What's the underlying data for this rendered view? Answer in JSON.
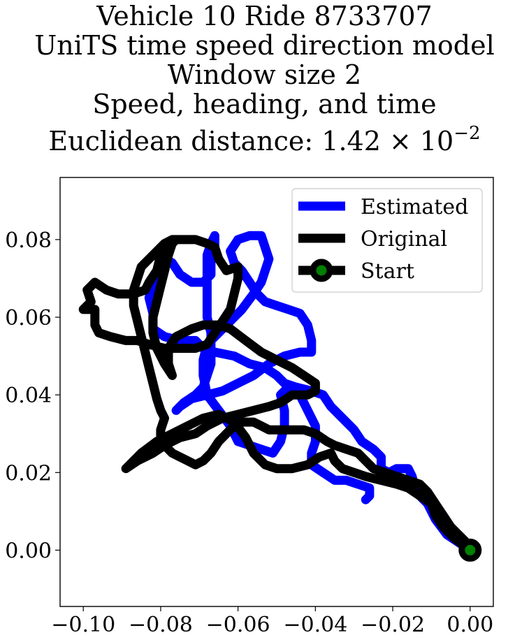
{
  "chart_data": {
    "type": "line",
    "title_lines": [
      "Vehicle 10 Ride 8733707",
      "UniTS time speed direction model",
      "Window size 2",
      "Speed, heading, and time",
      "Euclidean distance: 1.42 × 10",
      "−2"
    ],
    "xlim": [
      -0.106,
      0.006
    ],
    "ylim": [
      -0.0145,
      0.096
    ],
    "xticks": [
      -0.1,
      -0.08,
      -0.06,
      -0.04,
      -0.02,
      0.0
    ],
    "xtick_labels": [
      "−0.10",
      "−0.08",
      "−0.06",
      "−0.04",
      "−0.02",
      "0.00"
    ],
    "yticks": [
      0.0,
      0.02,
      0.04,
      0.06,
      0.08
    ],
    "ytick_labels": [
      "0.00",
      "0.02",
      "0.04",
      "0.06",
      "0.08"
    ],
    "grid": false,
    "legend_position": "top-right",
    "legend": [
      "Estimated",
      "Original",
      "Start"
    ],
    "series": [
      {
        "name": "Estimated",
        "color": "#0000ff",
        "points": [
          [
            0.0,
            0.0
          ],
          [
            -0.006,
            0.004
          ],
          [
            -0.009,
            0.008
          ],
          [
            -0.011,
            0.012
          ],
          [
            -0.014,
            0.015
          ],
          [
            -0.015,
            0.019
          ],
          [
            -0.016,
            0.021
          ],
          [
            -0.019,
            0.021
          ],
          [
            -0.021,
            0.02
          ],
          [
            -0.023,
            0.021
          ],
          [
            -0.023,
            0.024
          ],
          [
            -0.025,
            0.026
          ],
          [
            -0.028,
            0.028
          ],
          [
            -0.03,
            0.031
          ],
          [
            -0.033,
            0.034
          ],
          [
            -0.036,
            0.037
          ],
          [
            -0.038,
            0.04
          ],
          [
            -0.041,
            0.041
          ],
          [
            -0.045,
            0.042
          ],
          [
            -0.048,
            0.043
          ],
          [
            -0.05,
            0.045
          ],
          [
            -0.053,
            0.047
          ],
          [
            -0.057,
            0.048
          ],
          [
            -0.061,
            0.05
          ],
          [
            -0.066,
            0.051
          ],
          [
            -0.069,
            0.052
          ],
          [
            -0.071,
            0.054
          ],
          [
            -0.075,
            0.054
          ],
          [
            -0.079,
            0.055
          ],
          [
            -0.082,
            0.057
          ],
          [
            -0.082,
            0.061
          ],
          [
            -0.083,
            0.065
          ],
          [
            -0.082,
            0.069
          ],
          [
            -0.08,
            0.072
          ],
          [
            -0.079,
            0.075
          ],
          [
            -0.077,
            0.074
          ],
          [
            -0.075,
            0.071
          ],
          [
            -0.072,
            0.069
          ],
          [
            -0.069,
            0.069
          ],
          [
            -0.067,
            0.071
          ],
          [
            -0.067,
            0.075
          ],
          [
            -0.066,
            0.078
          ],
          [
            -0.066,
            0.081
          ],
          [
            -0.067,
            0.079
          ],
          [
            -0.068,
            0.076
          ],
          [
            -0.068,
            0.072
          ],
          [
            -0.068,
            0.068
          ],
          [
            -0.068,
            0.064
          ],
          [
            -0.068,
            0.06
          ],
          [
            -0.067,
            0.056
          ],
          [
            -0.067,
            0.052
          ],
          [
            -0.067,
            0.048
          ],
          [
            -0.068,
            0.045
          ],
          [
            -0.069,
            0.042
          ],
          [
            -0.071,
            0.04
          ],
          [
            -0.074,
            0.038
          ],
          [
            -0.076,
            0.036
          ],
          [
            -0.075,
            0.037
          ],
          [
            -0.072,
            0.039
          ],
          [
            -0.068,
            0.04
          ],
          [
            -0.064,
            0.041
          ],
          [
            -0.06,
            0.043
          ],
          [
            -0.056,
            0.045
          ],
          [
            -0.052,
            0.048
          ],
          [
            -0.048,
            0.05
          ],
          [
            -0.044,
            0.051
          ],
          [
            -0.041,
            0.051
          ],
          [
            -0.041,
            0.054
          ],
          [
            -0.042,
            0.058
          ],
          [
            -0.044,
            0.061
          ],
          [
            -0.047,
            0.062
          ],
          [
            -0.05,
            0.063
          ],
          [
            -0.053,
            0.064
          ],
          [
            -0.055,
            0.066
          ],
          [
            -0.057,
            0.069
          ],
          [
            -0.059,
            0.072
          ],
          [
            -0.061,
            0.074
          ],
          [
            -0.062,
            0.077
          ],
          [
            -0.06,
            0.08
          ],
          [
            -0.057,
            0.081
          ],
          [
            -0.054,
            0.081
          ],
          [
            -0.053,
            0.078
          ],
          [
            -0.052,
            0.075
          ],
          [
            -0.053,
            0.072
          ],
          [
            -0.054,
            0.069
          ],
          [
            -0.056,
            0.066
          ],
          [
            -0.059,
            0.062
          ],
          [
            -0.062,
            0.059
          ],
          [
            -0.065,
            0.056
          ],
          [
            -0.068,
            0.053
          ],
          [
            -0.069,
            0.049
          ],
          [
            -0.069,
            0.045
          ],
          [
            -0.068,
            0.04
          ],
          [
            -0.065,
            0.036
          ],
          [
            -0.062,
            0.032
          ],
          [
            -0.06,
            0.028
          ],
          [
            -0.057,
            0.027
          ],
          [
            -0.054,
            0.026
          ],
          [
            -0.051,
            0.025
          ],
          [
            -0.049,
            0.028
          ],
          [
            -0.048,
            0.032
          ],
          [
            -0.048,
            0.036
          ],
          [
            -0.049,
            0.04
          ],
          [
            -0.047,
            0.042
          ],
          [
            -0.044,
            0.04
          ],
          [
            -0.042,
            0.036
          ],
          [
            -0.04,
            0.032
          ],
          [
            -0.04,
            0.028
          ],
          [
            -0.041,
            0.025
          ],
          [
            -0.041,
            0.022
          ],
          [
            -0.038,
            0.02
          ],
          [
            -0.035,
            0.018
          ],
          [
            -0.032,
            0.018
          ],
          [
            -0.029,
            0.017
          ],
          [
            -0.026,
            0.016
          ],
          [
            -0.026,
            0.014
          ],
          [
            -0.027,
            0.013
          ]
        ]
      },
      {
        "name": "Original",
        "color": "#000000",
        "points": [
          [
            0.0,
            0.0
          ],
          [
            -0.004,
            0.003
          ],
          [
            -0.007,
            0.006
          ],
          [
            -0.009,
            0.009
          ],
          [
            -0.01,
            0.012
          ],
          [
            -0.013,
            0.014
          ],
          [
            -0.016,
            0.016
          ],
          [
            -0.019,
            0.017
          ],
          [
            -0.023,
            0.018
          ],
          [
            -0.027,
            0.019
          ],
          [
            -0.03,
            0.02
          ],
          [
            -0.033,
            0.021
          ],
          [
            -0.035,
            0.023
          ],
          [
            -0.036,
            0.025
          ],
          [
            -0.039,
            0.024
          ],
          [
            -0.042,
            0.022
          ],
          [
            -0.046,
            0.021
          ],
          [
            -0.05,
            0.021
          ],
          [
            -0.053,
            0.022
          ],
          [
            -0.056,
            0.025
          ],
          [
            -0.058,
            0.029
          ],
          [
            -0.061,
            0.033
          ],
          [
            -0.065,
            0.035
          ],
          [
            -0.069,
            0.034
          ],
          [
            -0.073,
            0.032
          ],
          [
            -0.077,
            0.03
          ],
          [
            -0.081,
            0.028
          ],
          [
            -0.085,
            0.025
          ],
          [
            -0.088,
            0.022
          ],
          [
            -0.089,
            0.021
          ],
          [
            -0.086,
            0.023
          ],
          [
            -0.082,
            0.025
          ],
          [
            -0.079,
            0.027
          ],
          [
            -0.075,
            0.029
          ],
          [
            -0.071,
            0.03
          ],
          [
            -0.068,
            0.032
          ],
          [
            -0.064,
            0.034
          ],
          [
            -0.06,
            0.035
          ],
          [
            -0.056,
            0.036
          ],
          [
            -0.052,
            0.037
          ],
          [
            -0.049,
            0.038
          ],
          [
            -0.046,
            0.04
          ],
          [
            -0.042,
            0.04
          ],
          [
            -0.04,
            0.041
          ],
          [
            -0.04,
            0.043
          ],
          [
            -0.043,
            0.045
          ],
          [
            -0.046,
            0.047
          ],
          [
            -0.05,
            0.049
          ],
          [
            -0.054,
            0.051
          ],
          [
            -0.058,
            0.054
          ],
          [
            -0.062,
            0.057
          ],
          [
            -0.065,
            0.058
          ],
          [
            -0.069,
            0.058
          ],
          [
            -0.072,
            0.057
          ],
          [
            -0.076,
            0.055
          ],
          [
            -0.078,
            0.052
          ],
          [
            -0.078,
            0.048
          ],
          [
            -0.077,
            0.045
          ],
          [
            -0.079,
            0.048
          ],
          [
            -0.081,
            0.052
          ],
          [
            -0.082,
            0.056
          ],
          [
            -0.082,
            0.06
          ],
          [
            -0.081,
            0.064
          ],
          [
            -0.08,
            0.068
          ],
          [
            -0.079,
            0.072
          ],
          [
            -0.078,
            0.076
          ],
          [
            -0.077,
            0.079
          ],
          [
            -0.076,
            0.08
          ],
          [
            -0.078,
            0.079
          ],
          [
            -0.08,
            0.076
          ],
          [
            -0.081,
            0.072
          ],
          [
            -0.083,
            0.069
          ],
          [
            -0.084,
            0.067
          ],
          [
            -0.087,
            0.066
          ],
          [
            -0.091,
            0.066
          ],
          [
            -0.094,
            0.067
          ],
          [
            -0.097,
            0.069
          ],
          [
            -0.099,
            0.067
          ],
          [
            -0.098,
            0.064
          ],
          [
            -0.1,
            0.062
          ],
          [
            -0.097,
            0.062
          ],
          [
            -0.097,
            0.058
          ],
          [
            -0.096,
            0.056
          ],
          [
            -0.093,
            0.055
          ],
          [
            -0.089,
            0.054
          ],
          [
            -0.086,
            0.054
          ],
          [
            -0.083,
            0.053
          ],
          [
            -0.079,
            0.052
          ],
          [
            -0.075,
            0.052
          ],
          [
            -0.071,
            0.052
          ],
          [
            -0.068,
            0.053
          ],
          [
            -0.066,
            0.056
          ],
          [
            -0.064,
            0.059
          ],
          [
            -0.062,
            0.062
          ],
          [
            -0.061,
            0.066
          ],
          [
            -0.06,
            0.07
          ],
          [
            -0.06,
            0.073
          ],
          [
            -0.063,
            0.072
          ],
          [
            -0.065,
            0.075
          ],
          [
            -0.066,
            0.078
          ],
          [
            -0.068,
            0.079
          ],
          [
            -0.071,
            0.08
          ],
          [
            -0.074,
            0.08
          ],
          [
            -0.077,
            0.08
          ],
          [
            -0.079,
            0.079
          ],
          [
            -0.081,
            0.077
          ],
          [
            -0.083,
            0.075
          ],
          [
            -0.085,
            0.073
          ],
          [
            -0.086,
            0.07
          ],
          [
            -0.087,
            0.067
          ],
          [
            -0.087,
            0.063
          ],
          [
            -0.086,
            0.059
          ],
          [
            -0.085,
            0.055
          ],
          [
            -0.084,
            0.051
          ],
          [
            -0.083,
            0.047
          ],
          [
            -0.082,
            0.043
          ],
          [
            -0.081,
            0.039
          ],
          [
            -0.08,
            0.036
          ],
          [
            -0.079,
            0.034
          ],
          [
            -0.08,
            0.031
          ],
          [
            -0.08,
            0.029
          ],
          [
            -0.079,
            0.027
          ],
          [
            -0.077,
            0.025
          ],
          [
            -0.075,
            0.024
          ],
          [
            -0.073,
            0.023
          ],
          [
            -0.071,
            0.022
          ],
          [
            -0.069,
            0.023
          ],
          [
            -0.067,
            0.025
          ],
          [
            -0.065,
            0.028
          ],
          [
            -0.063,
            0.03
          ],
          [
            -0.061,
            0.032
          ],
          [
            -0.059,
            0.033
          ],
          [
            -0.056,
            0.033
          ],
          [
            -0.054,
            0.032
          ],
          [
            -0.052,
            0.031
          ],
          [
            -0.049,
            0.031
          ],
          [
            -0.046,
            0.031
          ],
          [
            -0.043,
            0.031
          ],
          [
            -0.04,
            0.03
          ],
          [
            -0.037,
            0.028
          ],
          [
            -0.035,
            0.027
          ],
          [
            -0.032,
            0.026
          ],
          [
            -0.029,
            0.025
          ],
          [
            -0.027,
            0.023
          ],
          [
            -0.025,
            0.021
          ],
          [
            -0.022,
            0.02
          ],
          [
            -0.019,
            0.019
          ],
          [
            -0.016,
            0.018
          ],
          [
            -0.013,
            0.017
          ],
          [
            -0.011,
            0.015
          ],
          [
            -0.009,
            0.012
          ],
          [
            -0.007,
            0.009
          ],
          [
            -0.005,
            0.006
          ],
          [
            -0.003,
            0.004
          ],
          [
            -0.001,
            0.002
          ],
          [
            0.0,
            0.0
          ]
        ]
      }
    ],
    "start": {
      "name": "Start",
      "x": 0.0,
      "y": 0.0,
      "marker_color": "#008000",
      "edge_color": "#000000"
    }
  }
}
